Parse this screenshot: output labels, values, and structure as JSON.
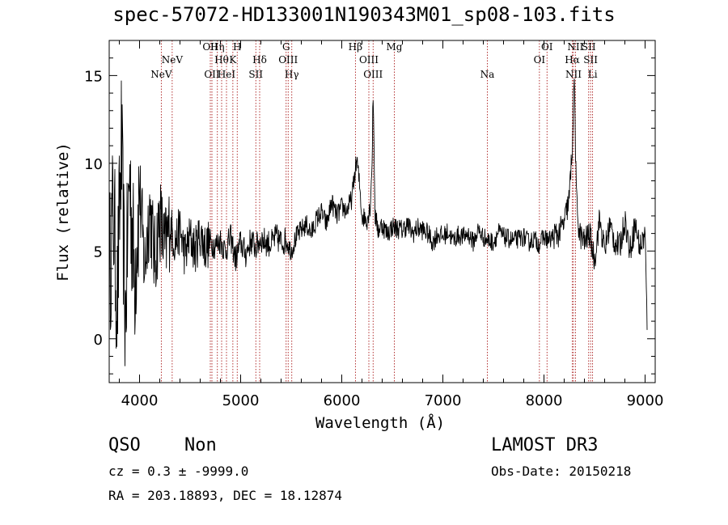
{
  "chart_data": {
    "type": "line",
    "title": "spec-57072-HD133001N190343M01_sp08-103.fits",
    "xlabel": "Wavelength (Å)",
    "ylabel": "Flux (relative)",
    "xlim": [
      3700,
      9100
    ],
    "ylim": [
      -2.5,
      17
    ],
    "xticks": [
      4000,
      5000,
      6000,
      7000,
      8000,
      9000
    ],
    "yticks": [
      0,
      5,
      10,
      15
    ],
    "grid": false,
    "series": [
      {
        "name": "flux",
        "color": "#000000",
        "x": [
          3700,
          3740,
          3780,
          3820,
          3860,
          3900,
          3950,
          4000,
          4050,
          4100,
          4150,
          4200,
          4250,
          4300,
          4350,
          4400,
          4450,
          4500,
          4550,
          4600,
          4650,
          4700,
          4750,
          4800,
          4850,
          4900,
          4950,
          5000,
          5050,
          5100,
          5150,
          5200,
          5250,
          5300,
          5350,
          5400,
          5450,
          5500,
          5550,
          5600,
          5650,
          5700,
          5750,
          5800,
          5850,
          5900,
          5950,
          6000,
          6050,
          6100,
          6130,
          6150,
          6180,
          6200,
          6250,
          6280,
          6300,
          6310,
          6330,
          6360,
          6400,
          6450,
          6500,
          6550,
          6600,
          6650,
          6700,
          6750,
          6800,
          6850,
          6900,
          6950,
          7000,
          7050,
          7100,
          7150,
          7200,
          7250,
          7300,
          7350,
          7400,
          7450,
          7500,
          7550,
          7600,
          7650,
          7700,
          7750,
          7800,
          7850,
          7900,
          7950,
          8000,
          8050,
          8100,
          8150,
          8200,
          8250,
          8280,
          8300,
          8320,
          8350,
          8400,
          8450,
          8500,
          8550,
          8600,
          8650,
          8700,
          8750,
          8800,
          8850,
          8900,
          8950,
          9000,
          9020
        ],
        "values": [
          3.5,
          7.5,
          2.0,
          11.0,
          1.0,
          9.5,
          3.5,
          8.5,
          4.0,
          7.5,
          4.5,
          7.0,
          5.0,
          6.5,
          5.5,
          6.2,
          4.8,
          5.8,
          5.0,
          6.0,
          5.2,
          5.5,
          5.3,
          5.6,
          5.0,
          5.8,
          4.5,
          5.5,
          4.8,
          5.6,
          5.2,
          5.7,
          5.5,
          5.4,
          5.8,
          5.5,
          5.6,
          5.0,
          5.8,
          6.2,
          6.5,
          6.0,
          6.8,
          7.2,
          6.5,
          7.8,
          7.0,
          7.5,
          7.3,
          8.0,
          9.5,
          10.2,
          8.5,
          7.0,
          6.8,
          7.5,
          10.0,
          14.0,
          7.0,
          6.2,
          6.5,
          6.0,
          6.4,
          6.3,
          6.2,
          6.5,
          6.0,
          6.3,
          6.2,
          6.0,
          5.5,
          6.0,
          5.8,
          6.1,
          5.6,
          5.9,
          5.8,
          6.0,
          5.5,
          6.2,
          5.8,
          5.6,
          5.5,
          6.1,
          5.8,
          5.7,
          5.6,
          5.7,
          5.8,
          5.5,
          5.7,
          5.4,
          5.8,
          5.6,
          5.9,
          6.0,
          6.6,
          8.0,
          11.0,
          15.0,
          8.0,
          6.0,
          5.5,
          6.0,
          4.5,
          6.8,
          5.0,
          6.5,
          5.5,
          5.2,
          6.8,
          5.0,
          6.5,
          5.2,
          6.0,
          0.5
        ]
      }
    ],
    "lines": [
      {
        "name": "NeV",
        "wavelength": 4215,
        "label": "NeV",
        "row": 3
      },
      {
        "name": "NeV",
        "wavelength": 4323,
        "label": "NeV",
        "row": 2
      },
      {
        "name": "OII",
        "wavelength": 4700,
        "label": "OII",
        "row": 1
      },
      {
        "name": "OII",
        "wavelength": 4716,
        "label": "OII",
        "row": 3
      },
      {
        "name": "Heta",
        "wavelength": 4770,
        "label": "Hη",
        "row": 1
      },
      {
        "name": "Htheta",
        "wavelength": 4812,
        "label": "Hθ",
        "row": 2
      },
      {
        "name": "HeI",
        "wavelength": 4860,
        "label": "HeI",
        "row": 3
      },
      {
        "name": "K",
        "wavelength": 4923,
        "label": "K",
        "row": 2
      },
      {
        "name": "H",
        "wavelength": 4966,
        "label": "H",
        "row": 1
      },
      {
        "name": "SII",
        "wavelength": 5150,
        "label": "SII",
        "row": 3
      },
      {
        "name": "Hdelta",
        "wavelength": 5188,
        "label": "Hδ",
        "row": 2
      },
      {
        "name": "G",
        "wavelength": 5450,
        "label": "G",
        "row": 1
      },
      {
        "name": "OIII",
        "wavelength": 5470,
        "label": "OIII",
        "row": 2
      },
      {
        "name": "Hgamma",
        "wavelength": 5506,
        "label": "Hγ",
        "row": 3
      },
      {
        "name": "Hbeta",
        "wavelength": 6135,
        "label": "Hβ",
        "row": 1
      },
      {
        "name": "OIII",
        "wavelength": 6268,
        "label": "OIII",
        "row": 2
      },
      {
        "name": "OIII",
        "wavelength": 6310,
        "label": "OIII",
        "row": 3
      },
      {
        "name": "Mg",
        "wavelength": 6520,
        "label": "Mg",
        "row": 1
      },
      {
        "name": "Na",
        "wavelength": 7440,
        "label": "Na",
        "row": 3
      },
      {
        "name": "OI",
        "wavelength": 7955,
        "label": "OI",
        "row": 2
      },
      {
        "name": "OI",
        "wavelength": 8030,
        "label": "OI",
        "row": 1
      },
      {
        "name": "Halpha",
        "wavelength": 8280,
        "label": "Hα",
        "row": 2
      },
      {
        "name": "NII",
        "wavelength": 8292,
        "label": "NII",
        "row": 3
      },
      {
        "name": "NII",
        "wavelength": 8311,
        "label": "NII",
        "row": 1
      },
      {
        "name": "SII",
        "wavelength": 8442,
        "label": "SII",
        "row": 1
      },
      {
        "name": "SII",
        "wavelength": 8461,
        "label": "SII",
        "row": 2
      },
      {
        "name": "Li",
        "wavelength": 8481,
        "label": "Li",
        "row": 3
      }
    ],
    "colors": {
      "spectrum": "#000000",
      "line_marker": "#a00000",
      "axes": "#000000"
    }
  },
  "info": {
    "class_label": "QSO",
    "subclass_label": "Non",
    "survey": "LAMOST DR3",
    "cz": "cz = 0.3 ± -9999.0",
    "obs_date": "Obs-Date: 20150218",
    "coords": "RA = 203.18893, DEC =  18.12874"
  }
}
